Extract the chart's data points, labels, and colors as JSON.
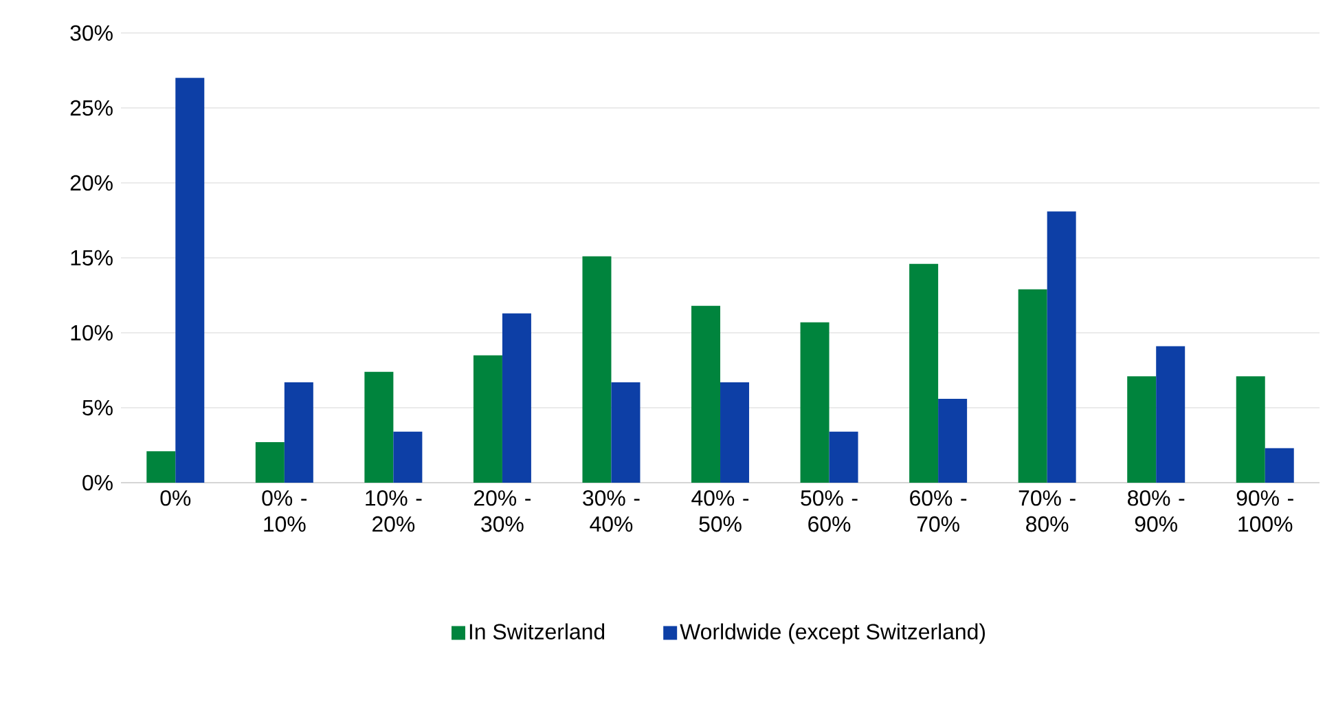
{
  "chart_data": {
    "type": "bar",
    "categories": [
      "0%",
      "0% - 10%",
      "10% - 20%",
      "20% - 30%",
      "30% - 40%",
      "40% - 50%",
      "50% - 60%",
      "60% - 70%",
      "70% - 80%",
      "80% - 90%",
      "90% - 100%"
    ],
    "series": [
      {
        "name": "In Switzerland",
        "color": "#00843d",
        "values": [
          2.1,
          2.7,
          7.4,
          8.5,
          15.1,
          11.8,
          10.7,
          14.6,
          12.9,
          7.1,
          7.1
        ]
      },
      {
        "name": "Worldwide (except Switzerland)",
        "color": "#0d3fa6",
        "values": [
          27.0,
          6.7,
          3.4,
          11.3,
          6.7,
          6.7,
          3.4,
          5.6,
          18.1,
          9.1,
          2.3
        ]
      }
    ],
    "ylim": [
      0,
      30
    ],
    "yticks": [
      {
        "value": 0,
        "label": "0%"
      },
      {
        "value": 5,
        "label": "5%"
      },
      {
        "value": 10,
        "label": "10%"
      },
      {
        "value": 15,
        "label": "15%"
      },
      {
        "value": 20,
        "label": "20%"
      },
      {
        "value": 25,
        "label": "25%"
      },
      {
        "value": 30,
        "label": "30%"
      }
    ],
    "grid": "y",
    "legend": "bottom"
  }
}
